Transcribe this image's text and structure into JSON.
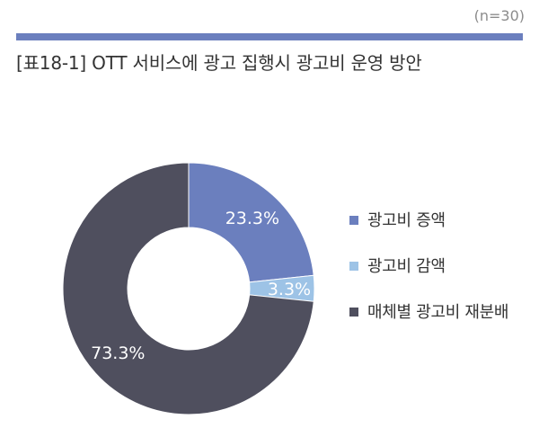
{
  "header": {
    "n_label": "(n=30)",
    "title": "[표18-1] OTT 서비스에 광고 집행시 광고비 운영 방안"
  },
  "chart_data": {
    "type": "pie",
    "donut": true,
    "legend_position": "right",
    "slices": [
      {
        "label": "광고비 증액",
        "value": 23.3,
        "display": "23.3%",
        "color": "#6b7fbe"
      },
      {
        "label": "광고비 감액",
        "value": 3.3,
        "display": "3.3%",
        "color": "#9dc3e6"
      },
      {
        "label": "매체별 광고비 재분배",
        "value": 73.3,
        "display": "73.3%",
        "color": "#4f4f5e"
      }
    ]
  },
  "colors": {
    "accent_bar": "#6b7fbe",
    "label_on_light": "#ffffff",
    "label_on_dark": "#ffffff"
  }
}
